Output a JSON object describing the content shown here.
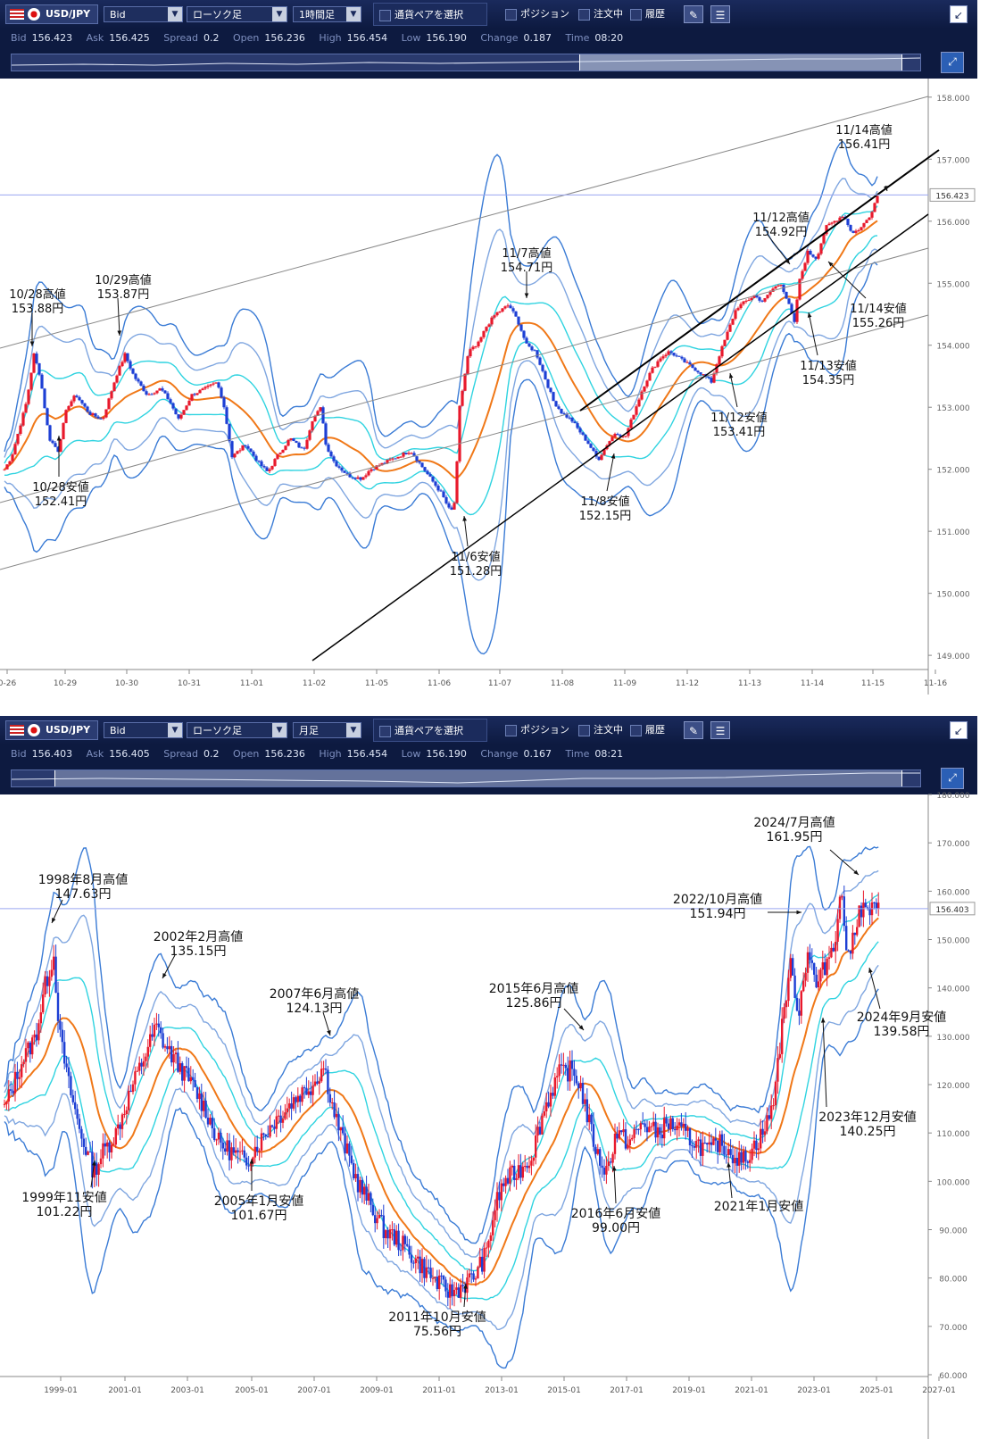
{
  "panels": [
    {
      "toolbar": {
        "pair": "USD/JPY",
        "price_type": "Bid",
        "chart_style": "ローソク足",
        "timeframe": "1時間足",
        "pair_select_label": "通貨ペアを選択",
        "position_label": "ポジション",
        "order_label": "注文中",
        "history_label": "履歴"
      },
      "info": {
        "bid_label": "Bid",
        "bid": "156.423",
        "ask_label": "Ask",
        "ask": "156.425",
        "spread_label": "Spread",
        "spread": "0.2",
        "open_label": "Open",
        "open": "156.236",
        "high_label": "High",
        "high": "156.454",
        "low_label": "Low",
        "low": "156.190",
        "change_label": "Change",
        "change": "0.187",
        "time_label": "Time",
        "time": "08:20"
      }
    },
    {
      "toolbar": {
        "pair": "USD/JPY",
        "price_type": "Bid",
        "chart_style": "ローソク足",
        "timeframe": "月足",
        "pair_select_label": "通貨ペアを選択",
        "position_label": "ポジション",
        "order_label": "注文中",
        "history_label": "履歴"
      },
      "info": {
        "bid_label": "Bid",
        "bid": "156.403",
        "ask_label": "Ask",
        "ask": "156.405",
        "spread_label": "Spread",
        "spread": "0.2",
        "open_label": "Open",
        "open": "156.236",
        "high_label": "High",
        "high": "156.454",
        "low_label": "Low",
        "low": "156.190",
        "change_label": "Change",
        "change": "0.167",
        "time_label": "Time",
        "time": "08:21"
      }
    }
  ],
  "colors": {
    "toolbar_bg": "#0d1a40",
    "candle_up": "#e8192c",
    "candle_down": "#1d3fd4",
    "bb_outer": "#3a7bd5",
    "bb_mid": "#7fa6e0",
    "bb_inner": "#2fd3e0",
    "ma": "#f07818",
    "price_line": "#9aa6f0"
  },
  "chart_data": [
    {
      "type": "candlestick",
      "timeframe": "1時間足",
      "ylim": [
        148.8,
        158.3
      ],
      "y_ticks": [
        "158.000",
        "157.000",
        "156.000",
        "155.000",
        "154.000",
        "153.000",
        "152.000",
        "151.000",
        "150.000",
        "149.000"
      ],
      "y_tick_values": [
        158,
        157,
        156,
        155,
        154,
        153,
        152,
        151,
        150,
        149
      ],
      "x_ticks": [
        "0-26",
        "10-29",
        "10-30",
        "10-31",
        "11-01",
        "11-02",
        "11-05",
        "11-06",
        "11-07",
        "11-08",
        "11-09",
        "11-12",
        "11-13",
        "11-14",
        "11-15",
        "11-16"
      ],
      "current_price": "156.423",
      "current_value": 156.423,
      "path": [
        [
          0,
          152.0
        ],
        [
          8,
          152.2
        ],
        [
          25,
          153.1
        ],
        [
          33,
          153.85
        ],
        [
          40,
          153.5
        ],
        [
          50,
          152.5
        ],
        [
          60,
          152.3
        ],
        [
          70,
          153.0
        ],
        [
          80,
          153.2
        ],
        [
          95,
          152.9
        ],
        [
          110,
          152.8
        ],
        [
          125,
          153.5
        ],
        [
          135,
          153.85
        ],
        [
          145,
          153.5
        ],
        [
          160,
          153.2
        ],
        [
          175,
          153.3
        ],
        [
          185,
          153.1
        ],
        [
          195,
          152.8
        ],
        [
          210,
          153.2
        ],
        [
          225,
          153.3
        ],
        [
          238,
          153.4
        ],
        [
          245,
          153.1
        ],
        [
          255,
          152.2
        ],
        [
          270,
          152.4
        ],
        [
          285,
          152.1
        ],
        [
          295,
          151.95
        ],
        [
          305,
          152.2
        ],
        [
          320,
          152.5
        ],
        [
          335,
          152.3
        ],
        [
          345,
          152.8
        ],
        [
          355,
          153.0
        ],
        [
          360,
          152.4
        ],
        [
          370,
          152.1
        ],
        [
          385,
          151.9
        ],
        [
          400,
          151.85
        ],
        [
          410,
          152.0
        ],
        [
          425,
          152.1
        ],
        [
          440,
          152.2
        ],
        [
          455,
          152.3
        ],
        [
          470,
          152.0
        ],
        [
          480,
          151.8
        ],
        [
          490,
          151.6
        ],
        [
          500,
          151.3
        ],
        [
          505,
          151.5
        ],
        [
          510,
          153.0
        ],
        [
          520,
          153.9
        ],
        [
          530,
          154.0
        ],
        [
          540,
          154.3
        ],
        [
          550,
          154.5
        ],
        [
          565,
          154.65
        ],
        [
          575,
          154.4
        ],
        [
          585,
          154.0
        ],
        [
          595,
          153.9
        ],
        [
          605,
          153.5
        ],
        [
          615,
          153.1
        ],
        [
          625,
          152.9
        ],
        [
          635,
          152.8
        ],
        [
          645,
          152.6
        ],
        [
          655,
          152.4
        ],
        [
          665,
          152.15
        ],
        [
          675,
          152.4
        ],
        [
          685,
          152.6
        ],
        [
          695,
          152.5
        ],
        [
          705,
          152.9
        ],
        [
          715,
          153.3
        ],
        [
          725,
          153.6
        ],
        [
          735,
          153.8
        ],
        [
          745,
          153.9
        ],
        [
          755,
          153.8
        ],
        [
          765,
          153.7
        ],
        [
          775,
          153.6
        ],
        [
          785,
          153.5
        ],
        [
          792,
          153.41
        ],
        [
          800,
          153.8
        ],
        [
          810,
          154.2
        ],
        [
          820,
          154.6
        ],
        [
          830,
          154.7
        ],
        [
          840,
          154.8
        ],
        [
          850,
          154.7
        ],
        [
          860,
          154.9
        ],
        [
          870,
          155.0
        ],
        [
          880,
          154.6
        ],
        [
          885,
          154.35
        ],
        [
          890,
          155.0
        ],
        [
          900,
          155.5
        ],
        [
          910,
          155.4
        ],
        [
          920,
          155.9
        ],
        [
          930,
          156.0
        ],
        [
          940,
          156.1
        ],
        [
          950,
          155.8
        ],
        [
          960,
          155.9
        ],
        [
          970,
          156.1
        ],
        [
          978,
          156.41
        ]
      ],
      "annotations": [
        {
          "line1": "11/14高値",
          "line2": "156.41円"
        },
        {
          "line1": "11/12高値",
          "line2": "154.92円"
        },
        {
          "line1": "11/7高値",
          "line2": "154.71円"
        },
        {
          "line1": "10/29高値",
          "line2": "153.87円"
        },
        {
          "line1": "10/28高値",
          "line2": "153.88円"
        },
        {
          "line1": "10/28安値",
          "line2": "152.41円"
        },
        {
          "line1": "11/6安値",
          "line2": "151.28円"
        },
        {
          "line1": "11/8安値",
          "line2": "152.15円"
        },
        {
          "line1": "11/12安値",
          "line2": "153.41円"
        },
        {
          "line1": "11/13安値",
          "line2": "154.35円"
        },
        {
          "line1": "11/14安値",
          "line2": "155.26円"
        }
      ]
    },
    {
      "type": "candlestick",
      "timeframe": "月足",
      "ylim": [
        60,
        180
      ],
      "y_ticks": [
        "180.000",
        "170.000",
        "160.000",
        "150.000",
        "140.000",
        "130.000",
        "120.000",
        "110.000",
        "100.000",
        "90.000",
        "80.000",
        "70.000",
        "60.000"
      ],
      "y_tick_values": [
        180,
        170,
        160,
        150,
        140,
        130,
        120,
        110,
        100,
        90,
        80,
        70,
        60
      ],
      "x_ticks": [
        "1999-01",
        "2001-01",
        "2003-01",
        "2005-01",
        "2007-01",
        "2009-01",
        "2011-01",
        "2013-01",
        "2015-01",
        "2017-01",
        "2019-01",
        "2021-01",
        "2023-01",
        "2025-01",
        "2027-01"
      ],
      "current_price": "156.403",
      "current_value": 156.403,
      "path": [
        [
          0,
          115
        ],
        [
          20,
          125
        ],
        [
          35,
          130
        ],
        [
          45,
          140
        ],
        [
          55,
          147
        ],
        [
          62,
          130
        ],
        [
          72,
          120
        ],
        [
          85,
          110
        ],
        [
          100,
          102
        ],
        [
          110,
          106
        ],
        [
          125,
          110
        ],
        [
          140,
          118
        ],
        [
          155,
          125
        ],
        [
          170,
          132
        ],
        [
          180,
          128
        ],
        [
          195,
          124
        ],
        [
          210,
          120
        ],
        [
          225,
          115
        ],
        [
          240,
          108
        ],
        [
          255,
          106
        ],
        [
          270,
          104
        ],
        [
          285,
          108
        ],
        [
          300,
          112
        ],
        [
          315,
          115
        ],
        [
          330,
          118
        ],
        [
          345,
          120
        ],
        [
          358,
          124
        ],
        [
          368,
          115
        ],
        [
          380,
          108
        ],
        [
          395,
          100
        ],
        [
          410,
          95
        ],
        [
          425,
          90
        ],
        [
          440,
          88
        ],
        [
          455,
          85
        ],
        [
          470,
          82
        ],
        [
          485,
          79
        ],
        [
          500,
          77
        ],
        [
          510,
          78
        ],
        [
          525,
          80
        ],
        [
          540,
          85
        ],
        [
          550,
          95
        ],
        [
          560,
          100
        ],
        [
          575,
          102
        ],
        [
          590,
          105
        ],
        [
          605,
          115
        ],
        [
          620,
          122
        ],
        [
          635,
          123
        ],
        [
          645,
          120
        ],
        [
          655,
          112
        ],
        [
          665,
          105
        ],
        [
          675,
          102
        ],
        [
          685,
          110
        ],
        [
          700,
          108
        ],
        [
          715,
          112
        ],
        [
          730,
          110
        ],
        [
          745,
          112
        ],
        [
          760,
          110
        ],
        [
          775,
          108
        ],
        [
          790,
          106
        ],
        [
          800,
          108
        ],
        [
          815,
          106
        ],
        [
          825,
          104
        ],
        [
          835,
          106
        ],
        [
          850,
          110
        ],
        [
          860,
          115
        ],
        [
          870,
          130
        ],
        [
          880,
          145
        ],
        [
          890,
          135
        ],
        [
          900,
          148
        ],
        [
          910,
          140
        ],
        [
          920,
          145
        ],
        [
          930,
          150
        ],
        [
          938,
          160
        ],
        [
          945,
          145
        ],
        [
          952,
          152
        ],
        [
          957,
          156
        ]
      ],
      "annotations": [
        {
          "line1": "2024/7月高値",
          "line2": "161.95円"
        },
        {
          "line1": "1998年8月高値",
          "line2": "147.63円"
        },
        {
          "line1": "2022/10月高値",
          "line2": "151.94円"
        },
        {
          "line1": "2002年2月高値",
          "line2": "135.15円"
        },
        {
          "line1": "2007年6月高値",
          "line2": "124.13円"
        },
        {
          "line1": "2015年6月高値",
          "line2": "125.86円"
        },
        {
          "line1": "2024年9月安値",
          "line2": "139.58円"
        },
        {
          "line1": "2023年12月安値",
          "line2": "140.25円"
        },
        {
          "line1": "1999年11安値",
          "line2": "101.22円"
        },
        {
          "line1": "2005年1月安値",
          "line2": "101.67円"
        },
        {
          "line1": "2016年6月安値",
          "line2": "99.00円"
        },
        {
          "line1": "2021年1月安値",
          "line2": ""
        },
        {
          "line1": "2011年10月安値",
          "line2": "75.56円"
        }
      ]
    }
  ]
}
